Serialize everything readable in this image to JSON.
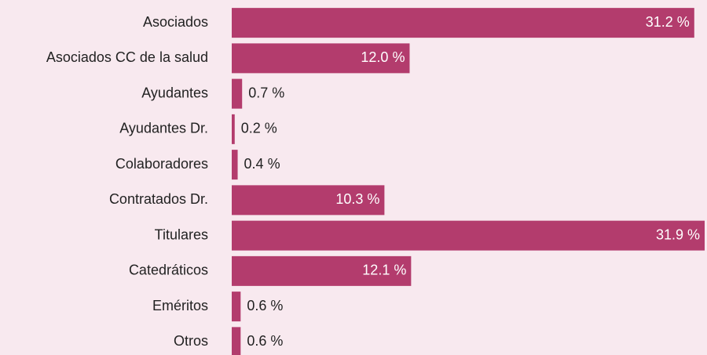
{
  "chart_data": {
    "type": "bar",
    "orientation": "horizontal",
    "categories": [
      "Asociados",
      "Asociados CC de la salud",
      "Ayudantes",
      "Ayudantes Dr.",
      "Colaboradores",
      "Contratados Dr.",
      "Titulares",
      "Catedráticos",
      "Eméritos",
      "Otros"
    ],
    "values": [
      31.2,
      12.0,
      0.7,
      0.2,
      0.4,
      10.3,
      31.9,
      12.1,
      0.6,
      0.6
    ],
    "value_labels": [
      "31.2 %",
      "12.0 %",
      "0.7 %",
      "0.2 %",
      "0.4 %",
      "10.3 %",
      "31.9 %",
      "12.1 %",
      "0.6 %",
      "0.6 %"
    ],
    "color": "#b33c6d"
  }
}
